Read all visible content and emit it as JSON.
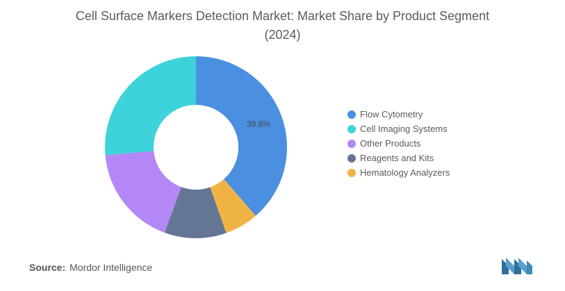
{
  "title": {
    "line1": "Cell Surface Markers Detection Market: Market Share by Product Segment",
    "line2": "(2024)"
  },
  "chart_data": {
    "type": "pie",
    "style": "donut",
    "title": "Cell Surface Markers Detection Market: Market Share by Product Segment (2024)",
    "start_angle_deg": 90,
    "slices": [
      {
        "name": "Flow Cytometry",
        "value": 38.6,
        "color": "#4a8fe0",
        "label": "38.6%"
      },
      {
        "name": "Hematology Analyzers",
        "value": 6.0,
        "color": "#f0b445",
        "label": ""
      },
      {
        "name": "Reagents and Kits",
        "value": 11.0,
        "color": "#647693",
        "label": ""
      },
      {
        "name": "Other Products",
        "value": 18.0,
        "color": "#b387f5",
        "label": ""
      },
      {
        "name": "Cell Imaging Systems",
        "value": 26.4,
        "color": "#3ed3db",
        "label": ""
      }
    ],
    "legend": {
      "placement": "right",
      "entries": [
        "Flow Cytometry",
        "Cell Imaging Systems",
        "Other Products",
        "Reagents and Kits",
        "Hematology Analyzers"
      ]
    }
  },
  "source": {
    "label": "Source:",
    "text": "Mordor Intelligence"
  },
  "logo": {
    "name": "mordor-intelligence-logo-icon",
    "color": "#5aa0c8"
  }
}
